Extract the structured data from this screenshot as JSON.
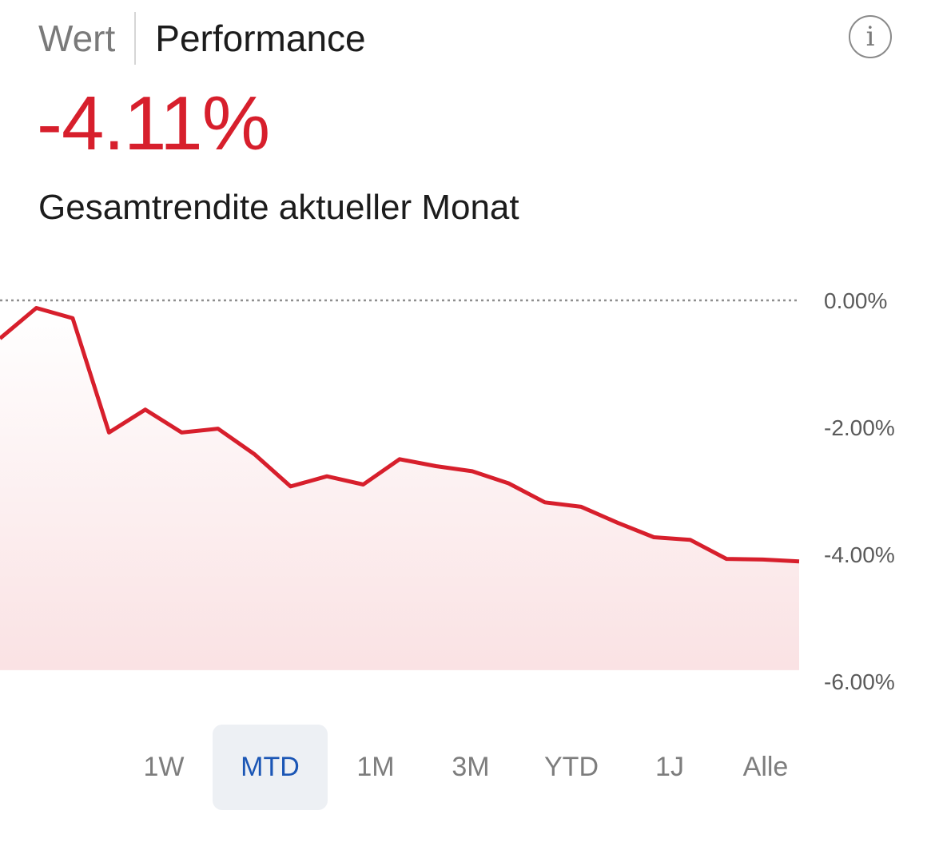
{
  "header": {
    "tabs": [
      {
        "label": "Wert",
        "active": false
      },
      {
        "label": "Performance",
        "active": true
      }
    ],
    "info_icon": "info-circle-icon",
    "info_glyph": "i"
  },
  "summary": {
    "value": "-4.11%",
    "value_color": "#d71f2c",
    "label": "Gesamtrendite aktueller Monat"
  },
  "chart_data": {
    "type": "line",
    "title": "",
    "xlabel": "",
    "ylabel": "",
    "ylim": [
      -6.2,
      0
    ],
    "y_ticks": [
      0,
      -2,
      -4,
      -6
    ],
    "y_tick_labels": [
      "0.00%",
      "-2.00%",
      "-4.00%",
      "-6.00%"
    ],
    "reference_line": 0,
    "line_color": "#d71f2c",
    "fill": "gradient",
    "series": [
      {
        "values": [
          -0.6,
          -0.12,
          -0.28,
          -2.08,
          -1.72,
          -2.08,
          -2.02,
          -2.42,
          -2.93,
          -2.77,
          -2.9,
          -2.5,
          -2.61,
          -2.69,
          -2.88,
          -3.18,
          -3.25,
          -3.5,
          -3.73,
          -3.77,
          -4.07,
          -4.08,
          -4.11
        ]
      }
    ]
  },
  "ranges": {
    "options": [
      "1W",
      "MTD",
      "1M",
      "3M",
      "YTD",
      "1J",
      "Alle"
    ],
    "selected": "MTD"
  }
}
